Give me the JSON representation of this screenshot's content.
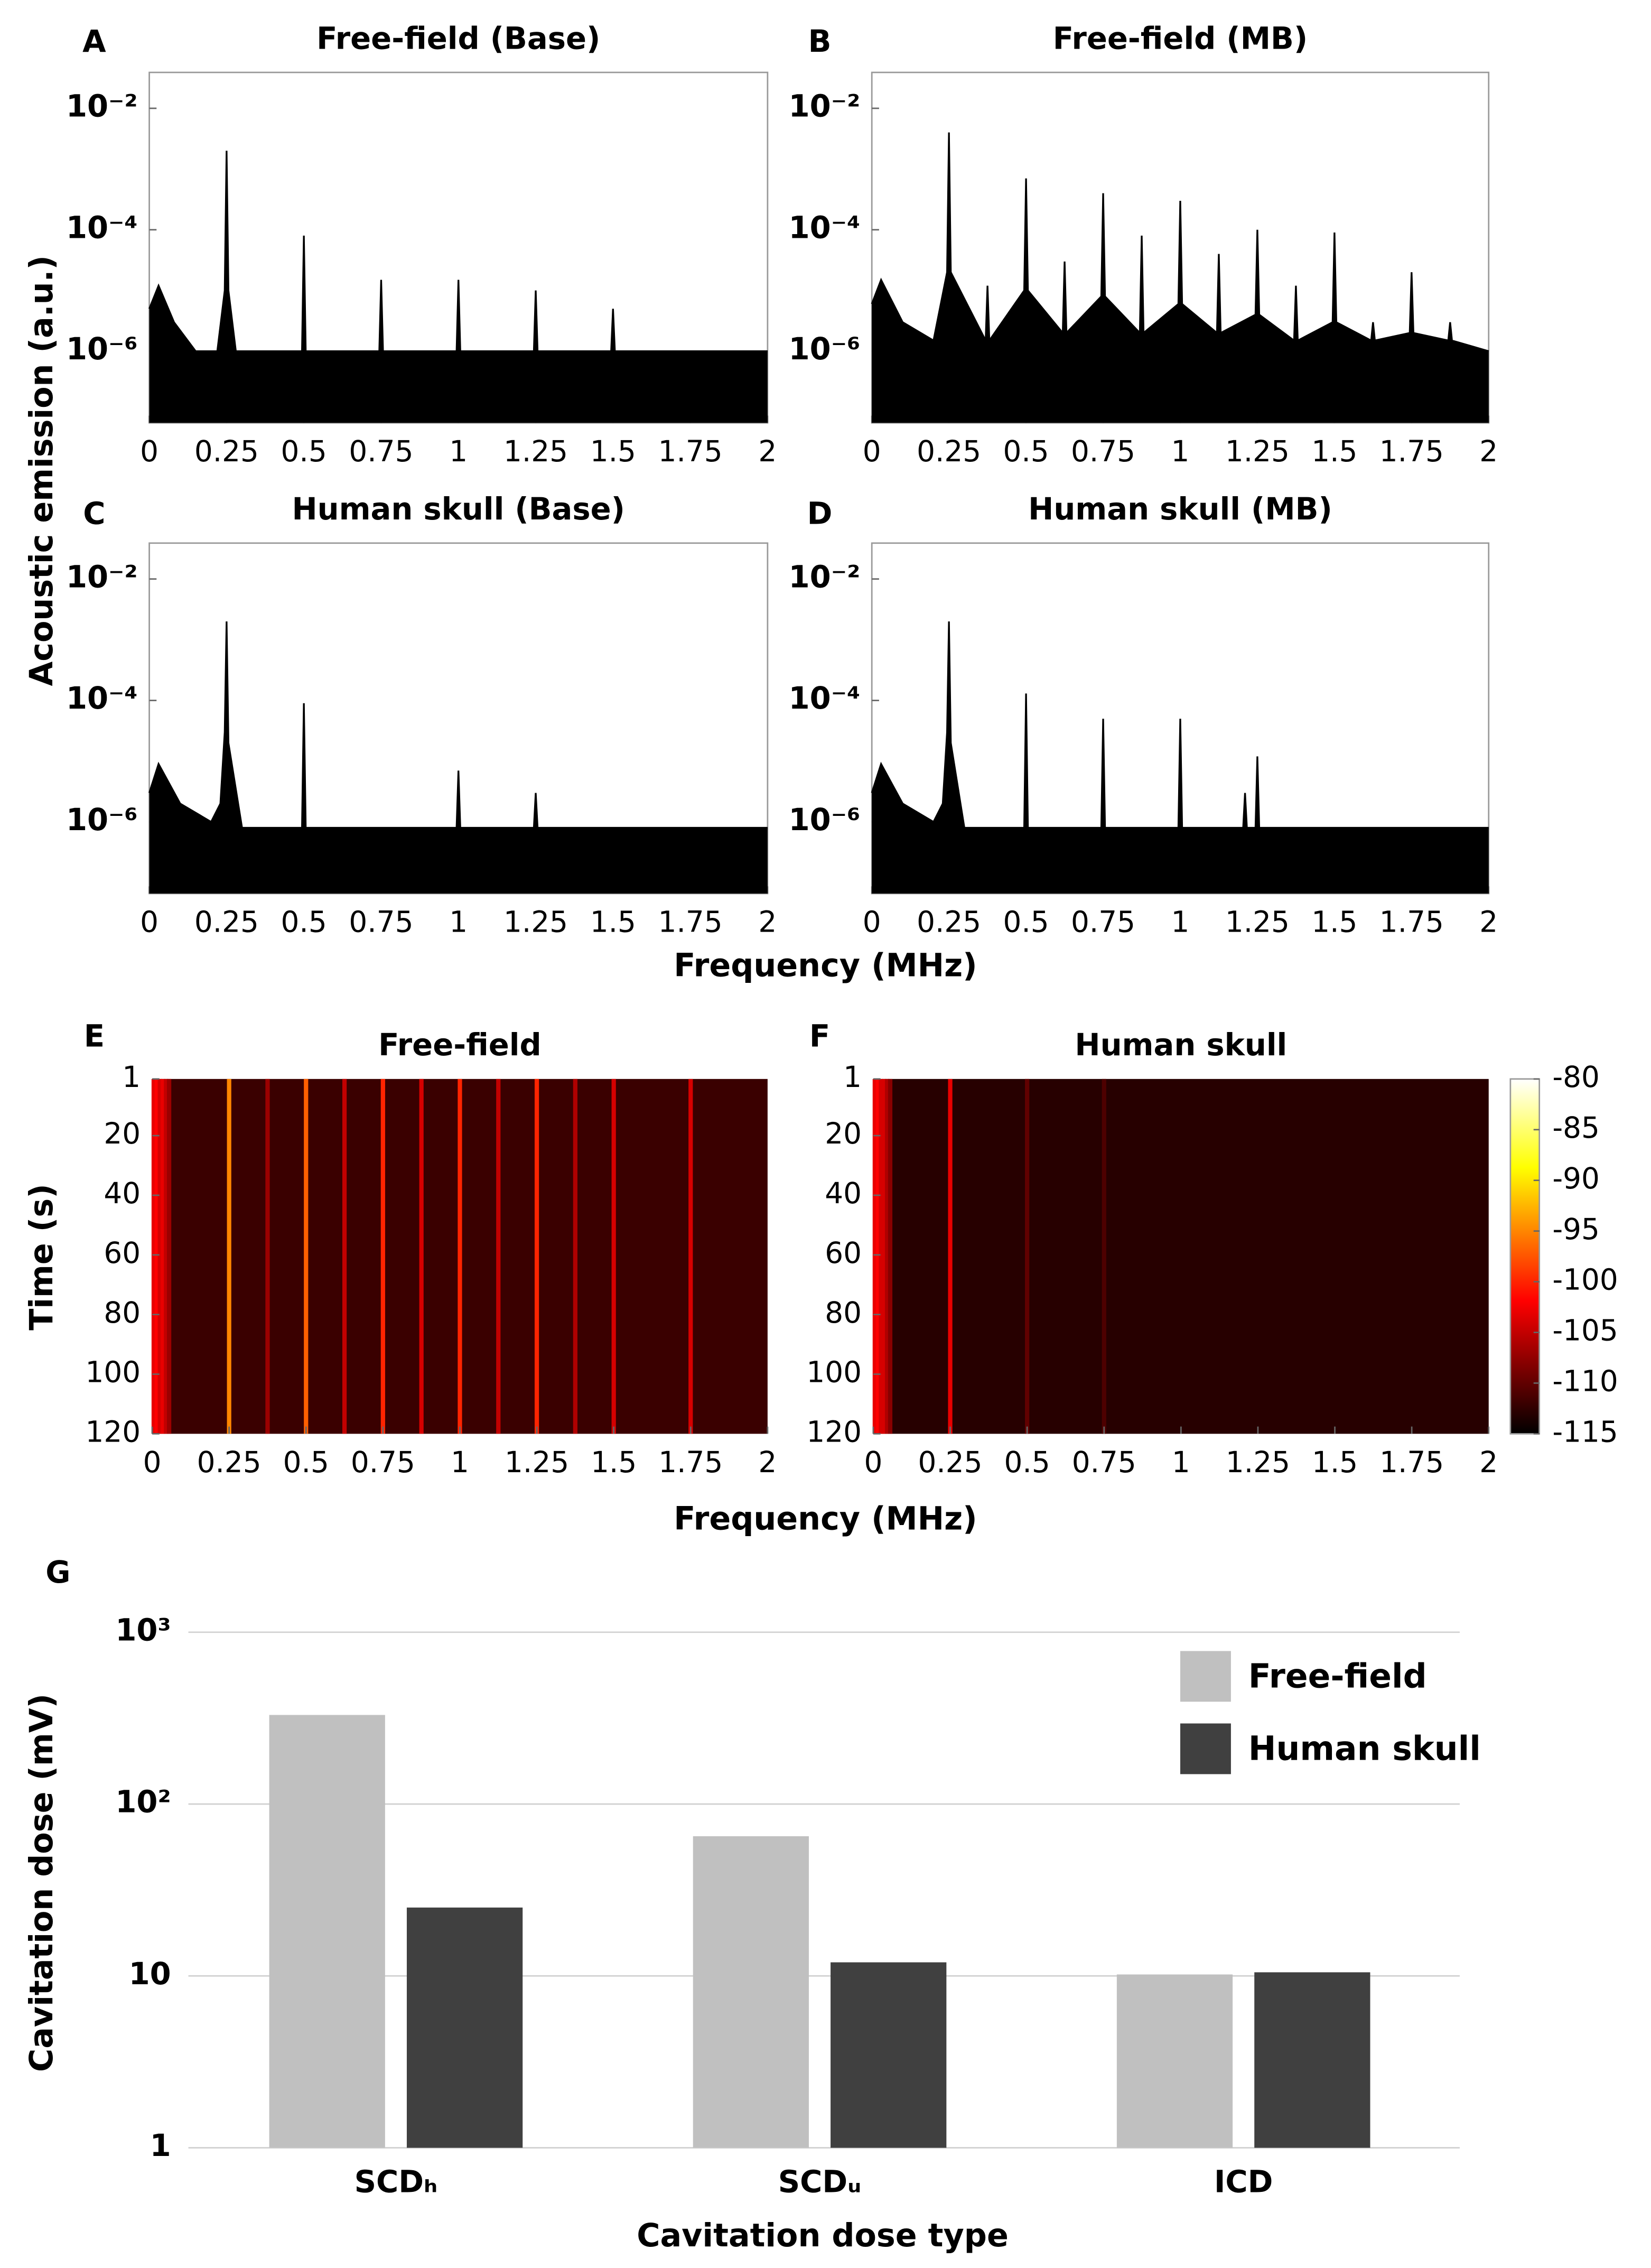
{
  "chart_data": [
    {
      "type": "line",
      "label": "A",
      "title": "Free-field (Base)",
      "ylabel": "Acoustic emission (a.u.)",
      "log_scale": true,
      "color": "#000000",
      "x": [
        0,
        0.03,
        0.08,
        0.15,
        0.22,
        0.244,
        0.25,
        0.256,
        0.28,
        0.494,
        0.5,
        0.506,
        0.744,
        0.75,
        0.756,
        0.994,
        1,
        1.006,
        1.244,
        1.25,
        1.256,
        1.494,
        1.5,
        1.506,
        2
      ],
      "values": [
        5e-06,
        1.2e-05,
        3e-06,
        1e-06,
        1e-06,
        1e-05,
        0.002,
        1e-05,
        1e-06,
        1e-06,
        8e-05,
        1e-06,
        1e-06,
        1.5e-05,
        1e-06,
        1e-06,
        1.5e-05,
        1e-06,
        1e-06,
        1e-05,
        1e-06,
        1e-06,
        5e-06,
        1e-06,
        1e-06
      ],
      "xlim": [
        0,
        2
      ],
      "xticks": [
        0,
        0.25,
        0.5,
        0.75,
        1,
        1.25,
        1.5,
        1.75,
        2
      ],
      "ylim": [
        6.6e-08,
        0.039
      ],
      "yticks": [
        {
          "value": 0.01,
          "label": "10⁻²"
        },
        {
          "value": 0.0001,
          "label": "10⁻⁴"
        },
        {
          "value": 1e-06,
          "label": "10⁻⁶"
        }
      ]
    },
    {
      "type": "line",
      "label": "B",
      "title": "Free-field (MB)",
      "log_scale": true,
      "color": "#000000",
      "x": [
        0,
        0.03,
        0.1,
        0.2,
        0.244,
        0.25,
        0.256,
        0.369,
        0.375,
        0.381,
        0.494,
        0.5,
        0.506,
        0.619,
        0.625,
        0.631,
        0.744,
        0.75,
        0.756,
        0.869,
        0.875,
        0.881,
        0.994,
        1,
        1.006,
        1.119,
        1.125,
        1.131,
        1.244,
        1.25,
        1.256,
        1.369,
        1.375,
        1.381,
        1.494,
        1.5,
        1.506,
        1.619,
        1.625,
        1.631,
        1.744,
        1.75,
        1.756,
        1.869,
        1.875,
        1.881,
        2
      ],
      "values": [
        6e-06,
        1.5e-05,
        3e-06,
        1.5e-06,
        2e-05,
        0.004,
        2e-05,
        1.5e-06,
        1.2e-05,
        1.5e-06,
        1e-05,
        0.0007,
        1e-05,
        2e-06,
        3e-05,
        2e-06,
        8e-06,
        0.0004,
        8e-06,
        2e-06,
        8e-05,
        2e-06,
        6e-06,
        0.0003,
        6e-06,
        2e-06,
        4e-05,
        2e-06,
        4e-06,
        0.0001,
        4e-06,
        1.5e-06,
        1.2e-05,
        1.5e-06,
        3e-06,
        9e-05,
        3e-06,
        1.5e-06,
        3e-06,
        1.5e-06,
        2e-06,
        2e-05,
        2e-06,
        1.5e-06,
        3e-06,
        1.5e-06,
        1e-06
      ],
      "xlim": [
        0,
        2
      ],
      "xticks": [
        0,
        0.25,
        0.5,
        0.75,
        1,
        1.25,
        1.5,
        1.75,
        2
      ],
      "ylim": [
        6.6e-08,
        0.039
      ],
      "yticks": [
        {
          "value": 0.01,
          "label": "10⁻²"
        },
        {
          "value": 0.0001,
          "label": "10⁻⁴"
        },
        {
          "value": 1e-06,
          "label": "10⁻⁶"
        }
      ]
    },
    {
      "type": "line",
      "label": "C",
      "title": "Human skull (Base)",
      "xlabel": "Frequency (MHz)",
      "log_scale": true,
      "color": "#000000",
      "x": [
        0,
        0.03,
        0.1,
        0.2,
        0.23,
        0.244,
        0.25,
        0.256,
        0.3,
        0.494,
        0.5,
        0.506,
        0.994,
        1,
        1.006,
        1.244,
        1.25,
        1.256,
        2
      ],
      "values": [
        3e-06,
        9e-06,
        2e-06,
        1e-06,
        2e-06,
        3e-05,
        0.002,
        2e-05,
        8e-07,
        8e-07,
        9e-05,
        8e-07,
        8e-07,
        7e-06,
        8e-07,
        8e-07,
        3e-06,
        8e-07,
        8e-07
      ],
      "xlim": [
        0,
        2
      ],
      "xticks": [
        0,
        0.25,
        0.5,
        0.75,
        1,
        1.25,
        1.5,
        1.75,
        2
      ],
      "ylim": [
        6.6e-08,
        0.039
      ],
      "yticks": [
        {
          "value": 0.01,
          "label": "10⁻²"
        },
        {
          "value": 0.0001,
          "label": "10⁻⁴"
        },
        {
          "value": 1e-06,
          "label": "10⁻⁶"
        }
      ]
    },
    {
      "type": "line",
      "label": "D",
      "title": "Human skull (MB)",
      "log_scale": true,
      "color": "#000000",
      "x": [
        0,
        0.03,
        0.1,
        0.2,
        0.23,
        0.244,
        0.25,
        0.256,
        0.3,
        0.494,
        0.5,
        0.506,
        0.744,
        0.75,
        0.756,
        0.994,
        1,
        1.006,
        1.204,
        1.21,
        1.216,
        1.244,
        1.25,
        1.256,
        2
      ],
      "values": [
        3e-06,
        9e-06,
        2e-06,
        1e-06,
        2e-06,
        3e-05,
        0.002,
        2e-05,
        8e-07,
        8e-07,
        0.00013,
        8e-07,
        8e-07,
        5e-05,
        8e-07,
        8e-07,
        5e-05,
        8e-07,
        8e-07,
        3e-06,
        8e-07,
        8e-07,
        1.2e-05,
        8e-07,
        8e-07
      ],
      "xlim": [
        0,
        2
      ],
      "xticks": [
        0,
        0.25,
        0.5,
        0.75,
        1,
        1.25,
        1.5,
        1.75,
        2
      ],
      "ylim": [
        6.6e-08,
        0.039
      ],
      "yticks": [
        {
          "value": 0.01,
          "label": "10⁻²"
        },
        {
          "value": 0.0001,
          "label": "10⁻⁴"
        },
        {
          "value": 1e-06,
          "label": "10⁻⁶"
        }
      ]
    },
    {
      "type": "heatmap",
      "label": "E",
      "title": "Free-field",
      "ylabel": "Time (s)",
      "xlabel": "Frequency (MHz)",
      "colormap": "hot",
      "floor": -112,
      "x": [
        0.005,
        0.015,
        0.025,
        0.035,
        0.045,
        0.055,
        0.25,
        0.375,
        0.5,
        0.625,
        0.75,
        0.875,
        1,
        1.125,
        1.25,
        1.375,
        1.5,
        1.75
      ],
      "values": [
        -103,
        -102,
        -104,
        -103,
        -105,
        -107,
        -95,
        -107,
        -97,
        -105,
        -100,
        -104,
        -100,
        -105,
        -100,
        -106,
        -104,
        -104
      ],
      "xlim": [
        0,
        2
      ],
      "xticks": [
        0,
        0.25,
        0.5,
        0.75,
        1,
        1.25,
        1.5,
        1.75,
        2
      ],
      "ylim": [
        1,
        120
      ],
      "yticks": [
        1,
        20,
        40,
        60,
        80,
        100,
        120
      ],
      "clim": [
        -115,
        -80
      ]
    },
    {
      "type": "heatmap",
      "label": "F",
      "title": "Human skull",
      "colormap": "hot",
      "floor": -113,
      "x": [
        0.005,
        0.015,
        0.025,
        0.035,
        0.045,
        0.055,
        0.25,
        0.5,
        0.75
      ],
      "values": [
        -103,
        -102,
        -104,
        -104,
        -106,
        -108,
        -103,
        -110,
        -111
      ],
      "xlim": [
        0,
        2
      ],
      "xticks": [
        0,
        0.25,
        0.5,
        0.75,
        1,
        1.25,
        1.5,
        1.75,
        2
      ],
      "ylim": [
        1,
        120
      ],
      "yticks": [
        1,
        20,
        40,
        60,
        80,
        100,
        120
      ],
      "clim": [
        -115,
        -80
      ],
      "cticks": [
        -80,
        -85,
        -90,
        -95,
        -100,
        -105,
        -110,
        -115
      ]
    },
    {
      "type": "bar",
      "label": "G",
      "ylabel": "Cavitation dose (mV)",
      "xlabel": "Cavitation dose type",
      "log_scale": true,
      "grid": true,
      "legend": "upper right",
      "categories": [
        "SCDₕ",
        "SCDᵤ",
        "ICD"
      ],
      "series": [
        {
          "name": "Free-field",
          "color": "#c0c0c0",
          "values": [
            330,
            65,
            10.2
          ]
        },
        {
          "name": "Human skull",
          "color": "#404040",
          "values": [
            25,
            12,
            10.5
          ]
        }
      ],
      "ylim": [
        1,
        1000
      ],
      "yticks": [
        1,
        10,
        {
          "value": 100,
          "label": "10²"
        },
        {
          "value": 1000,
          "label": "10³"
        }
      ]
    }
  ]
}
